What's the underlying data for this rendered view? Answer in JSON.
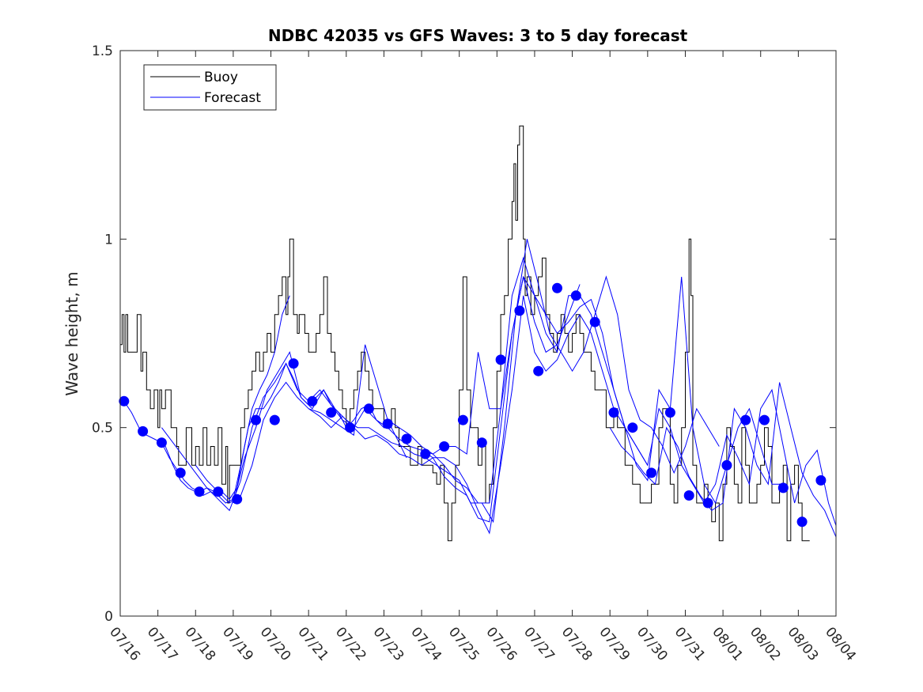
{
  "chart_data": {
    "type": "line",
    "title": "NDBC 42035 vs GFS Waves: 3 to 5 day forecast",
    "xlabel": "",
    "ylabel": "Wave height, m",
    "xlim": [
      0,
      19
    ],
    "ylim": [
      0,
      1.5
    ],
    "x_tick_labels": [
      "07/16",
      "07/17",
      "07/18",
      "07/19",
      "07/20",
      "07/21",
      "07/22",
      "07/23",
      "07/24",
      "07/25",
      "07/26",
      "07/27",
      "07/28",
      "07/29",
      "07/30",
      "07/31",
      "08/01",
      "08/02",
      "08/03",
      "08/04"
    ],
    "y_ticks": [
      0,
      0.5,
      1,
      1.5
    ],
    "y_tick_labels": [
      "0",
      "0.5",
      "1",
      "1.5"
    ],
    "grid": false,
    "legend": {
      "placement": "top-left",
      "entries": [
        "Buoy",
        "Forecast"
      ]
    },
    "colors": {
      "buoy": "#000000",
      "forecast": "#0000ff",
      "axis": "#262626"
    },
    "buoy": {
      "name": "Buoy",
      "x": [
        0,
        0.05,
        0.1,
        0.15,
        0.2,
        0.25,
        0.35,
        0.45,
        0.55,
        0.6,
        0.65,
        0.7,
        0.8,
        0.9,
        1.0,
        1.05,
        1.1,
        1.2,
        1.3,
        1.35,
        1.4,
        1.5,
        1.55,
        1.6,
        1.75,
        1.9,
        2.0,
        2.1,
        2.2,
        2.3,
        2.4,
        2.5,
        2.6,
        2.7,
        2.8,
        2.85,
        2.9,
        3.0,
        3.1,
        3.2,
        3.3,
        3.4,
        3.5,
        3.6,
        3.7,
        3.8,
        3.9,
        4.0,
        4.1,
        4.2,
        4.3,
        4.4,
        4.45,
        4.5,
        4.6,
        4.7,
        4.75,
        4.8,
        4.9,
        5.0,
        5.1,
        5.2,
        5.3,
        5.4,
        5.5,
        5.6,
        5.7,
        5.8,
        5.9,
        6.0,
        6.1,
        6.2,
        6.3,
        6.4,
        6.5,
        6.6,
        6.7,
        6.8,
        6.9,
        7.0,
        7.1,
        7.2,
        7.3,
        7.4,
        7.5,
        7.6,
        7.7,
        7.8,
        7.9,
        8.0,
        8.1,
        8.2,
        8.3,
        8.4,
        8.5,
        8.6,
        8.7,
        8.8,
        8.9,
        9.0,
        9.1,
        9.2,
        9.3,
        9.4,
        9.5,
        9.6,
        9.7,
        9.75,
        9.8,
        9.9,
        10.0,
        10.1,
        10.2,
        10.3,
        10.4,
        10.45,
        10.5,
        10.55,
        10.6,
        10.7,
        10.75,
        10.8,
        10.9,
        11.0,
        11.1,
        11.2,
        11.3,
        11.4,
        11.5,
        11.6,
        11.7,
        11.8,
        11.9,
        12.0,
        12.1,
        12.2,
        12.3,
        12.4,
        12.5,
        12.6,
        12.7,
        12.8,
        12.9,
        13.0,
        13.1,
        13.2,
        13.3,
        13.4,
        13.5,
        13.6,
        13.7,
        13.8,
        13.9,
        14.0,
        14.1,
        14.2,
        14.3,
        14.4,
        14.5,
        14.6,
        14.7,
        14.8,
        14.9,
        15.0,
        15.1,
        15.15,
        15.2,
        15.3,
        15.4,
        15.5,
        15.6,
        15.7,
        15.8,
        15.9,
        16.0,
        16.1,
        16.2,
        16.3,
        16.4,
        16.5,
        16.6,
        16.7,
        16.8,
        16.9,
        17.0,
        17.1,
        17.2,
        17.3,
        17.4,
        17.5,
        17.6,
        17.7,
        17.8,
        17.9,
        18.0,
        18.1,
        18.2,
        18.3
      ],
      "y": [
        0.72,
        0.8,
        0.7,
        0.8,
        0.7,
        0.7,
        0.7,
        0.8,
        0.65,
        0.7,
        0.7,
        0.6,
        0.55,
        0.6,
        0.5,
        0.6,
        0.55,
        0.6,
        0.6,
        0.5,
        0.5,
        0.45,
        0.4,
        0.4,
        0.5,
        0.4,
        0.45,
        0.4,
        0.5,
        0.4,
        0.45,
        0.4,
        0.5,
        0.35,
        0.45,
        0.3,
        0.4,
        0.4,
        0.4,
        0.5,
        0.55,
        0.6,
        0.65,
        0.7,
        0.65,
        0.7,
        0.75,
        0.7,
        0.8,
        0.85,
        0.9,
        0.8,
        0.9,
        1.0,
        0.8,
        0.75,
        0.8,
        0.8,
        0.75,
        0.7,
        0.7,
        0.75,
        0.8,
        0.9,
        0.75,
        0.7,
        0.65,
        0.6,
        0.55,
        0.5,
        0.55,
        0.6,
        0.65,
        0.7,
        0.65,
        0.6,
        0.55,
        0.55,
        0.55,
        0.5,
        0.5,
        0.55,
        0.5,
        0.45,
        0.45,
        0.45,
        0.4,
        0.4,
        0.45,
        0.4,
        0.4,
        0.4,
        0.38,
        0.35,
        0.4,
        0.3,
        0.2,
        0.3,
        0.4,
        0.6,
        0.9,
        0.6,
        0.5,
        0.5,
        0.4,
        0.45,
        0.3,
        0.3,
        0.35,
        0.5,
        0.65,
        0.8,
        0.85,
        1.0,
        1.1,
        1.2,
        1.05,
        1.25,
        1.3,
        1.0,
        0.85,
        0.9,
        0.8,
        0.85,
        0.9,
        0.95,
        0.8,
        0.75,
        0.7,
        0.75,
        0.8,
        0.75,
        0.7,
        0.75,
        0.8,
        0.75,
        0.7,
        0.7,
        0.65,
        0.6,
        0.6,
        0.6,
        0.5,
        0.5,
        0.55,
        0.5,
        0.5,
        0.4,
        0.4,
        0.35,
        0.35,
        0.3,
        0.3,
        0.3,
        0.35,
        0.35,
        0.5,
        0.55,
        0.55,
        0.35,
        0.3,
        0.4,
        0.5,
        0.7,
        1.0,
        0.85,
        0.4,
        0.3,
        0.3,
        0.35,
        0.3,
        0.25,
        0.3,
        0.2,
        0.35,
        0.5,
        0.45,
        0.35,
        0.3,
        0.5,
        0.4,
        0.3,
        0.3,
        0.35,
        0.4,
        0.5,
        0.45,
        0.3,
        0.3,
        0.35,
        0.4,
        0.2,
        0.35,
        0.4,
        0.3,
        0.2,
        0.2,
        0.2
      ]
    },
    "forecast": {
      "name": "Forecast",
      "lines": [
        {
          "x": [
            0.1,
            0.3,
            0.5,
            0.7,
            0.9,
            1.1,
            1.3,
            1.5,
            1.7,
            1.9,
            2.1,
            2.3,
            2.5,
            2.7,
            2.9,
            3.1,
            3.3,
            3.5,
            3.7,
            3.9,
            4.1,
            4.3,
            4.5
          ],
          "y": [
            0.57,
            0.54,
            0.5,
            0.48,
            0.47,
            0.46,
            0.42,
            0.39,
            0.36,
            0.34,
            0.33,
            0.34,
            0.33,
            0.33,
            0.31,
            0.34,
            0.45,
            0.55,
            0.6,
            0.64,
            0.7,
            0.8,
            0.85
          ]
        },
        {
          "x": [
            1.0,
            1.2,
            1.4,
            1.6,
            1.8,
            2.0,
            2.2,
            2.4,
            2.6,
            2.8,
            3.0,
            3.2,
            3.4,
            3.6,
            3.8,
            4.0,
            4.2,
            4.4,
            4.6,
            4.8,
            5.0,
            5.2,
            5.4,
            5.6,
            5.8,
            6.0,
            6.2,
            6.4,
            6.6,
            6.8,
            7.0,
            7.2,
            7.4,
            7.6
          ],
          "y": [
            0.46,
            0.45,
            0.4,
            0.36,
            0.34,
            0.33,
            0.32,
            0.33,
            0.32,
            0.3,
            0.31,
            0.4,
            0.5,
            0.55,
            0.55,
            0.58,
            0.62,
            0.67,
            0.63,
            0.58,
            0.56,
            0.58,
            0.6,
            0.56,
            0.54,
            0.5,
            0.52,
            0.55,
            0.56,
            0.52,
            0.5,
            0.5,
            0.46,
            0.42
          ]
        },
        {
          "x": [
            1.1,
            1.4,
            1.7,
            2.0,
            2.3,
            2.6,
            2.9,
            3.2,
            3.5,
            3.8,
            4.1,
            4.4,
            4.7,
            5.0,
            5.3,
            5.6,
            5.9,
            6.2,
            6.5,
            6.8,
            7.1,
            7.4,
            7.7,
            8.0,
            8.3,
            8.6,
            8.9,
            9.2,
            9.5,
            9.8,
            10.1,
            10.4,
            10.7,
            11.0,
            11.3,
            11.6,
            11.9,
            12.2
          ],
          "y": [
            0.5,
            0.46,
            0.42,
            0.38,
            0.34,
            0.31,
            0.28,
            0.36,
            0.5,
            0.58,
            0.62,
            0.67,
            0.6,
            0.57,
            0.6,
            0.56,
            0.52,
            0.5,
            0.55,
            0.52,
            0.5,
            0.47,
            0.45,
            0.44,
            0.43,
            0.4,
            0.36,
            0.34,
            0.3,
            0.3,
            0.55,
            0.75,
            0.9,
            0.78,
            0.7,
            0.72,
            0.8,
            0.88
          ]
        },
        {
          "x": [
            2.0,
            2.3,
            2.6,
            2.9,
            3.2,
            3.5,
            3.8,
            4.1,
            4.4,
            4.7,
            5.0,
            5.3,
            5.6,
            5.9,
            6.2,
            6.5,
            6.8,
            7.1,
            7.4,
            7.7,
            8.0,
            8.3,
            8.6,
            8.9,
            9.2,
            9.5,
            9.8,
            10.1,
            10.4,
            10.7,
            11.0,
            11.3,
            11.6,
            11.9,
            12.2,
            12.5,
            12.8,
            13.1,
            13.4,
            13.7,
            14.0
          ],
          "y": [
            0.4,
            0.36,
            0.33,
            0.3,
            0.32,
            0.4,
            0.52,
            0.58,
            0.62,
            0.58,
            0.55,
            0.53,
            0.5,
            0.53,
            0.5,
            0.47,
            0.48,
            0.46,
            0.43,
            0.42,
            0.4,
            0.42,
            0.37,
            0.34,
            0.32,
            0.26,
            0.25,
            0.5,
            0.75,
            0.9,
            0.85,
            0.8,
            0.75,
            0.78,
            0.82,
            0.84,
            0.75,
            0.6,
            0.5,
            0.45,
            0.4
          ]
        },
        {
          "x": [
            3.0,
            3.3,
            3.6,
            3.9,
            4.2,
            4.5,
            4.8,
            5.1,
            5.4,
            5.7,
            6.0,
            6.3,
            6.6,
            6.9,
            7.2,
            7.5,
            7.8,
            8.1,
            8.4,
            8.7,
            9.0,
            9.3,
            9.6,
            9.9,
            10.2,
            10.5,
            10.8,
            11.1,
            11.4,
            11.7,
            12.0,
            12.3,
            12.6,
            12.9,
            13.2,
            13.5,
            13.8,
            14.1,
            14.4,
            14.7,
            15.0,
            15.3,
            15.6,
            15.9
          ],
          "y": [
            0.3,
            0.42,
            0.5,
            0.6,
            0.65,
            0.7,
            0.58,
            0.55,
            0.6,
            0.55,
            0.52,
            0.5,
            0.5,
            0.48,
            0.46,
            0.45,
            0.43,
            0.42,
            0.4,
            0.38,
            0.36,
            0.3,
            0.3,
            0.25,
            0.5,
            0.8,
            1.0,
            0.88,
            0.75,
            0.7,
            0.65,
            0.7,
            0.8,
            0.9,
            0.8,
            0.6,
            0.52,
            0.5,
            0.45,
            0.38,
            0.45,
            0.55,
            0.5,
            0.45
          ]
        },
        {
          "x": [
            5.0,
            5.3,
            5.6,
            5.9,
            6.2,
            6.5,
            6.8,
            7.1,
            7.4,
            7.7,
            8.0,
            8.3,
            8.6,
            8.9,
            9.2,
            9.5,
            9.8,
            10.1,
            10.4,
            10.7,
            11.0,
            11.3,
            11.6,
            11.9,
            12.2,
            12.5,
            12.8,
            13.1,
            13.4,
            13.7,
            14.0,
            14.3,
            14.6,
            14.9,
            15.2,
            15.5,
            15.8,
            16.1,
            16.4,
            16.7,
            17.0,
            17.3,
            17.6
          ],
          "y": [
            0.55,
            0.54,
            0.52,
            0.5,
            0.48,
            0.72,
            0.62,
            0.52,
            0.5,
            0.48,
            0.45,
            0.43,
            0.45,
            0.45,
            0.43,
            0.7,
            0.55,
            0.55,
            0.85,
            0.95,
            0.85,
            0.75,
            0.7,
            0.85,
            0.85,
            0.8,
            0.7,
            0.6,
            0.5,
            0.4,
            0.36,
            0.6,
            0.55,
            0.9,
            0.5,
            0.35,
            0.3,
            0.4,
            0.5,
            0.55,
            0.45,
            0.35,
            0.35
          ]
        },
        {
          "x": [
            8.0,
            8.3,
            8.6,
            8.9,
            9.2,
            9.5,
            9.8,
            10.1,
            10.4,
            10.7,
            11.0,
            11.3,
            11.6,
            11.9,
            12.2,
            12.5,
            12.8,
            13.1,
            13.4,
            13.7,
            14.0,
            14.3,
            14.6,
            14.9,
            15.2,
            15.5,
            15.8,
            16.1,
            16.4,
            16.7,
            17.0,
            17.3,
            17.6,
            17.9,
            18.2,
            18.5,
            18.8,
            19.0
          ],
          "y": [
            0.44,
            0.42,
            0.42,
            0.4,
            0.35,
            0.28,
            0.22,
            0.4,
            0.6,
            0.85,
            0.7,
            0.65,
            0.68,
            0.75,
            0.8,
            0.75,
            0.65,
            0.55,
            0.5,
            0.45,
            0.4,
            0.55,
            0.5,
            0.4,
            0.35,
            0.3,
            0.35,
            0.48,
            0.42,
            0.35,
            0.55,
            0.6,
            0.45,
            0.3,
            0.4,
            0.44,
            0.3,
            0.24
          ]
        },
        {
          "x": [
            13.0,
            13.3,
            13.6,
            13.9,
            14.2,
            14.5,
            14.8,
            15.1,
            15.4,
            15.7,
            16.0,
            16.3,
            16.6,
            16.9,
            17.2,
            17.5,
            17.8,
            18.1,
            18.4,
            18.7,
            19.0
          ],
          "y": [
            0.5,
            0.45,
            0.42,
            0.38,
            0.35,
            0.5,
            0.45,
            0.37,
            0.32,
            0.28,
            0.3,
            0.55,
            0.5,
            0.4,
            0.35,
            0.62,
            0.5,
            0.38,
            0.32,
            0.28,
            0.21
          ]
        }
      ],
      "markers": {
        "x": [
          0.1,
          0.6,
          1.1,
          1.6,
          2.1,
          2.6,
          3.1,
          3.6,
          4.1,
          4.6,
          5.1,
          5.6,
          6.1,
          6.6,
          7.1,
          7.6,
          8.1,
          8.6,
          9.1,
          9.6,
          10.1,
          10.6,
          11.1,
          11.6,
          12.1,
          12.6,
          13.1,
          13.6,
          14.1,
          14.6,
          15.1,
          15.6,
          16.1,
          16.6,
          17.1,
          17.6,
          18.1,
          18.6
        ],
        "y": [
          0.57,
          0.49,
          0.46,
          0.38,
          0.33,
          0.33,
          0.31,
          0.52,
          0.52,
          0.67,
          0.57,
          0.54,
          0.5,
          0.55,
          0.51,
          0.47,
          0.43,
          0.45,
          0.52,
          0.46,
          0.68,
          0.81,
          0.65,
          0.87,
          0.85,
          0.78,
          0.54,
          0.5,
          0.38,
          0.54,
          0.32,
          0.3,
          0.4,
          0.52,
          0.52,
          0.34,
          0.25,
          0.36
        ]
      }
    }
  }
}
